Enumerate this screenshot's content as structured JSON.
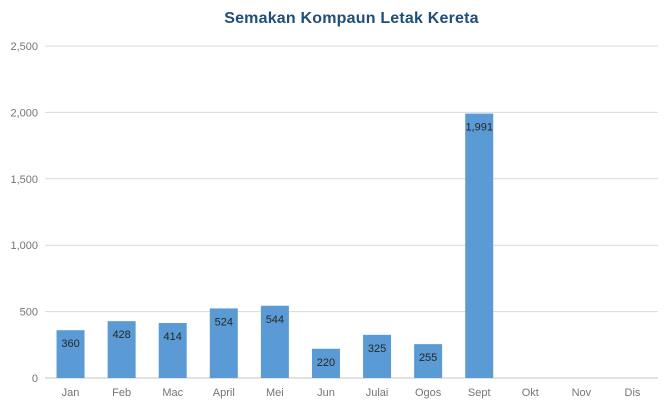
{
  "chart_data": {
    "type": "bar",
    "title": "Semakan Kompaun Letak Kereta",
    "categories": [
      "Jan",
      "Feb",
      "Mac",
      "April",
      "Mei",
      "Jun",
      "Julai",
      "Ogos",
      "Sept",
      "Okt",
      "Nov",
      "Dis"
    ],
    "values": [
      360,
      428,
      414,
      524,
      544,
      220,
      325,
      255,
      1991,
      0,
      0,
      0
    ],
    "value_labels": [
      "360",
      "428",
      "414",
      "524",
      "544",
      "220",
      "325",
      "255",
      "1,991",
      "",
      "",
      ""
    ],
    "xlabel": "",
    "ylabel": "",
    "ylim": [
      0,
      2500
    ],
    "y_tick_step": 500,
    "y_tick_labels": [
      "0",
      "500",
      "1,000",
      "1,500",
      "2,000",
      "2,500"
    ],
    "grid": true,
    "legend_position": "none",
    "colors": {
      "bar": "#5B9BD5",
      "title": "#1F4E79",
      "axis_label": "#757575",
      "gridline": "#D9D9D9",
      "axis_line": "#C6C6C6",
      "data_label": "#262626",
      "background": "#FFFFFF"
    }
  }
}
